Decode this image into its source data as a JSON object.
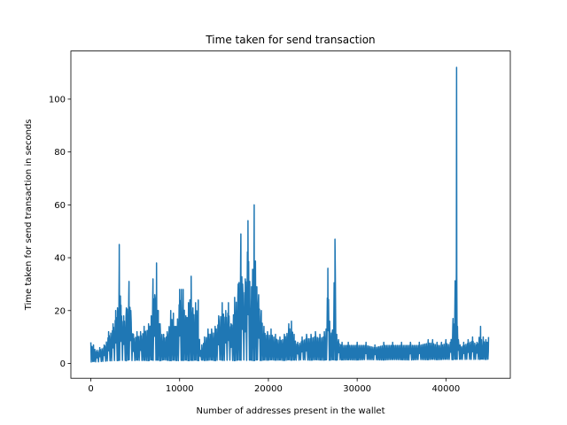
{
  "chart_data": {
    "type": "line",
    "title": "Time taken for send transaction",
    "xlabel": "Number of addresses present in the wallet",
    "ylabel": "Time taken for send transaction in seconds",
    "xlim": [
      -2250,
      47250
    ],
    "ylim": [
      -5.6,
      118.2
    ],
    "x_ticks": [
      0,
      10000,
      20000,
      30000,
      40000
    ],
    "y_ticks": [
      0,
      20,
      40,
      60,
      80,
      100
    ],
    "x_tick_labels": [
      "0",
      "10000",
      "20000",
      "30000",
      "40000"
    ],
    "y_tick_labels": [
      "0",
      "20",
      "40",
      "60",
      "80",
      "100"
    ],
    "grid": false,
    "series": [
      {
        "color": "#1f77b4",
        "envelope": {
          "x": [
            0,
            300,
            700,
            1000,
            1500,
            2000,
            2500,
            2800,
            3000,
            3200,
            3400,
            3700,
            4000,
            4300,
            4500,
            4800,
            5200,
            5600,
            6000,
            6500,
            6800,
            7000,
            7200,
            7400,
            7600,
            7800,
            8200,
            8600,
            9000,
            9300,
            9600,
            10000,
            10200,
            10400,
            10700,
            11000,
            11300,
            11500,
            11800,
            12100,
            12300,
            12500,
            12800,
            13200,
            13600,
            14000,
            14400,
            14800,
            15200,
            15500,
            15800,
            16200,
            16600,
            16900,
            17100,
            17400,
            17700,
            17900,
            18100,
            18400,
            18700,
            18900,
            19200,
            19500,
            19900,
            20300,
            20800,
            21300,
            21800,
            22300,
            22600,
            22900,
            23300,
            23800,
            24300,
            24800,
            25300,
            25800,
            26300,
            26500,
            26700,
            26900,
            27200,
            27500,
            27700,
            27900,
            28300,
            29000,
            30000,
            31000,
            32000,
            33000,
            34000,
            35000,
            36000,
            37000,
            38000,
            38500,
            39000,
            39500,
            40000,
            40500,
            40800,
            41000,
            41200,
            41300,
            41400,
            41600,
            42000,
            42500,
            43000,
            43500,
            43900,
            44000,
            44200,
            44500,
            44800
          ],
          "high": [
            8,
            7,
            5,
            6,
            7,
            12,
            15,
            20,
            21,
            45,
            22,
            18,
            21,
            31,
            20,
            11,
            12,
            12,
            14,
            15,
            18,
            32,
            26,
            38,
            20,
            15,
            11,
            12,
            20,
            19,
            14,
            28,
            28,
            28,
            18,
            23,
            33,
            21,
            23,
            24,
            5,
            7,
            10,
            13,
            13,
            14,
            18,
            23,
            20,
            23,
            15,
            25,
            30,
            49,
            30,
            32,
            54,
            31,
            29,
            60,
            29,
            26,
            20,
            14,
            12,
            13,
            11,
            10,
            11,
            15,
            16,
            11,
            8,
            10,
            11,
            11,
            12,
            11,
            12,
            13,
            36,
            16,
            12,
            47,
            11,
            9,
            8,
            8,
            8,
            8,
            7,
            8,
            8,
            8,
            8,
            8,
            9,
            9,
            8,
            8,
            9,
            8,
            17,
            18,
            112,
            14,
            9,
            7,
            8,
            9,
            10,
            8,
            14,
            9,
            10,
            9,
            10
          ],
          "low": [
            0.5,
            0.8,
            0.5,
            0.7,
            0.8,
            1.0,
            1.0,
            1.2,
            1.0,
            1.2,
            1.0,
            1.3,
            1.0,
            1.4,
            1.2,
            1.0,
            1.3,
            1.1,
            1.2,
            1.0,
            1.4,
            1.2,
            1.0,
            1.3,
            1.2,
            1.0,
            1.4,
            1.2,
            1.0,
            1.3,
            1.1,
            1.0,
            1.2,
            1.1,
            1.3,
            1.0,
            1.2,
            1.1,
            1.3,
            1.0,
            1.2,
            1.3,
            1.1,
            1.2,
            1.3,
            1.0,
            1.4,
            1.2,
            1.1,
            1.3,
            1.2,
            1.0,
            1.3,
            1.2,
            1.4,
            1.2,
            1.1,
            1.3,
            1.2,
            1.0,
            1.4,
            1.2,
            1.1,
            1.3,
            1.2,
            1.4,
            1.2,
            1.3,
            1.1,
            1.4,
            1.2,
            1.3,
            1.2,
            1.4,
            1.3,
            1.2,
            1.4,
            1.3,
            1.2,
            1.4,
            1.3,
            1.2,
            1.4,
            1.3,
            1.2,
            1.5,
            1.3,
            1.4,
            1.3,
            1.5,
            1.4,
            1.3,
            1.5,
            1.4,
            1.3,
            1.5,
            1.4,
            1.6,
            1.4,
            1.5,
            1.6,
            1.5,
            1.4,
            1.6,
            1.5,
            1.6,
            1.5,
            1.6,
            1.5,
            1.6,
            1.5,
            1.6,
            1.5,
            1.7,
            1.6,
            1.5,
            1.6
          ]
        }
      }
    ]
  }
}
